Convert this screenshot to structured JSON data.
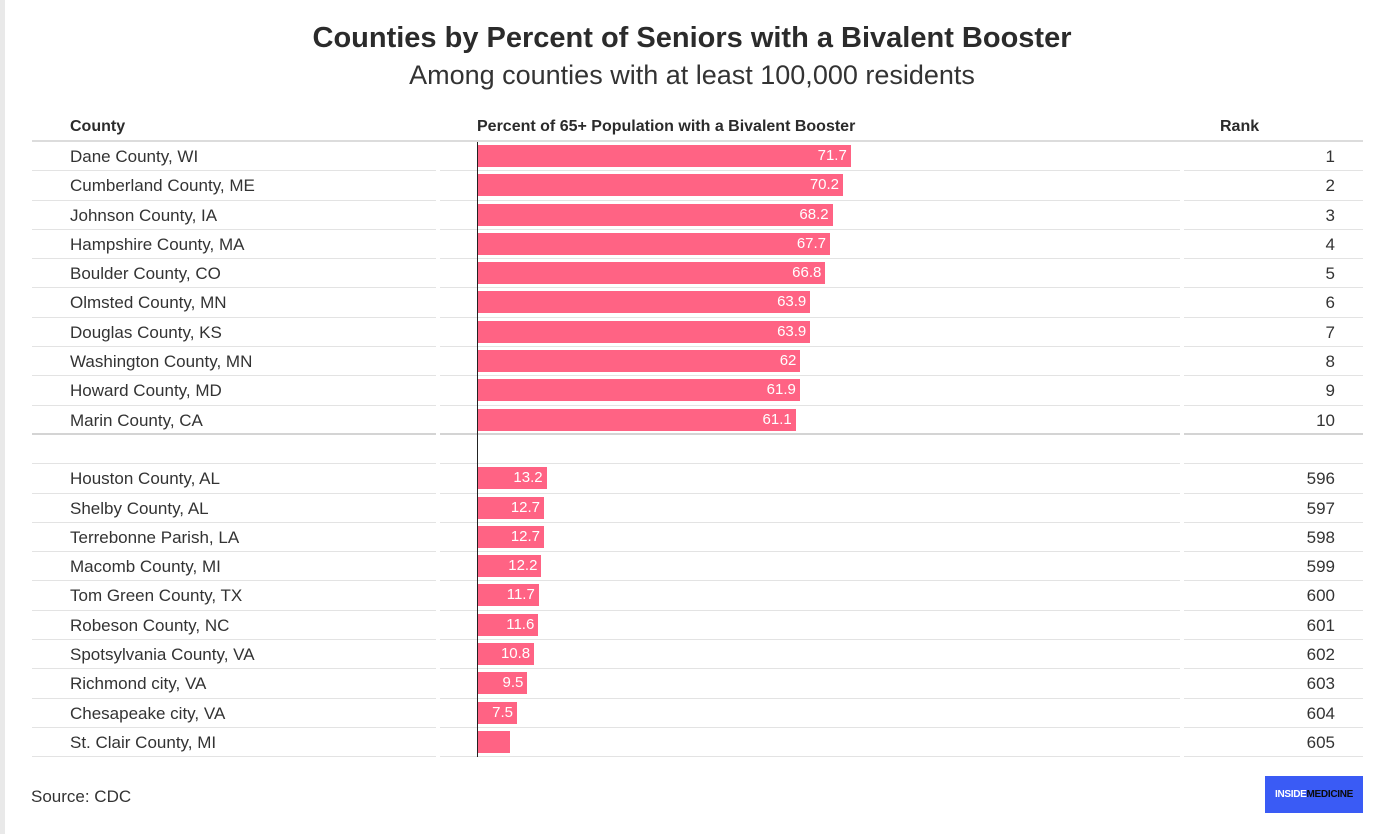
{
  "title": "Counties by Percent of Seniors with a Bivalent Booster",
  "subtitle": "Among counties with at least 100,000 residents",
  "columns": {
    "county": "County",
    "percent": "Percent of 65+ Population with a Bivalent Booster",
    "rank": "Rank"
  },
  "source": "Source: CDC",
  "logo": {
    "part1": "INSIDE",
    "part2": "MEDICINE"
  },
  "colors": {
    "bar": "#ff6384",
    "logo_bg": "#3a5bf5"
  },
  "chart_data": {
    "type": "bar",
    "orientation": "horizontal",
    "title": "Counties by Percent of Seniors with a Bivalent Booster",
    "subtitle": "Among counties with at least 100,000 residents",
    "xlim": [
      0,
      100
    ],
    "rows": [
      {
        "county": "Dane County, WI",
        "value": 71.7,
        "label": "71.7",
        "rank": "1"
      },
      {
        "county": "Cumberland County, ME",
        "value": 70.2,
        "label": "70.2",
        "rank": "2"
      },
      {
        "county": "Johnson County, IA",
        "value": 68.2,
        "label": "68.2",
        "rank": "3"
      },
      {
        "county": "Hampshire County, MA",
        "value": 67.7,
        "label": "67.7",
        "rank": "4"
      },
      {
        "county": "Boulder County, CO",
        "value": 66.8,
        "label": "66.8",
        "rank": "5"
      },
      {
        "county": "Olmsted County, MN",
        "value": 63.9,
        "label": "63.9",
        "rank": "6"
      },
      {
        "county": "Douglas County, KS",
        "value": 63.9,
        "label": "63.9",
        "rank": "7"
      },
      {
        "county": "Washington County, MN",
        "value": 62,
        "label": "62",
        "rank": "8"
      },
      {
        "county": "Howard County, MD",
        "value": 61.9,
        "label": "61.9",
        "rank": "9"
      },
      {
        "county": "Marin County, CA",
        "value": 61.1,
        "label": "61.1",
        "rank": "10"
      },
      {
        "county": "",
        "value": null,
        "label": "",
        "rank": ""
      },
      {
        "county": "Houston County, AL",
        "value": 13.2,
        "label": "13.2",
        "rank": "596"
      },
      {
        "county": "Shelby County, AL",
        "value": 12.7,
        "label": "12.7",
        "rank": "597"
      },
      {
        "county": "Terrebonne Parish, LA",
        "value": 12.7,
        "label": "12.7",
        "rank": "598"
      },
      {
        "county": "Macomb County, MI",
        "value": 12.2,
        "label": "12.2",
        "rank": "599"
      },
      {
        "county": "Tom Green County, TX",
        "value": 11.7,
        "label": "11.7",
        "rank": "600"
      },
      {
        "county": "Robeson County, NC",
        "value": 11.6,
        "label": "11.6",
        "rank": "601"
      },
      {
        "county": "Spotsylvania County, VA",
        "value": 10.8,
        "label": "10.8",
        "rank": "602"
      },
      {
        "county": "Richmond city, VA",
        "value": 9.5,
        "label": "9.5",
        "rank": "603"
      },
      {
        "county": "Chesapeake city, VA",
        "value": 7.5,
        "label": "7.5",
        "rank": "604"
      },
      {
        "county": "St. Clair County, MI",
        "value": 6.2,
        "label": "",
        "rank": "605"
      }
    ]
  }
}
